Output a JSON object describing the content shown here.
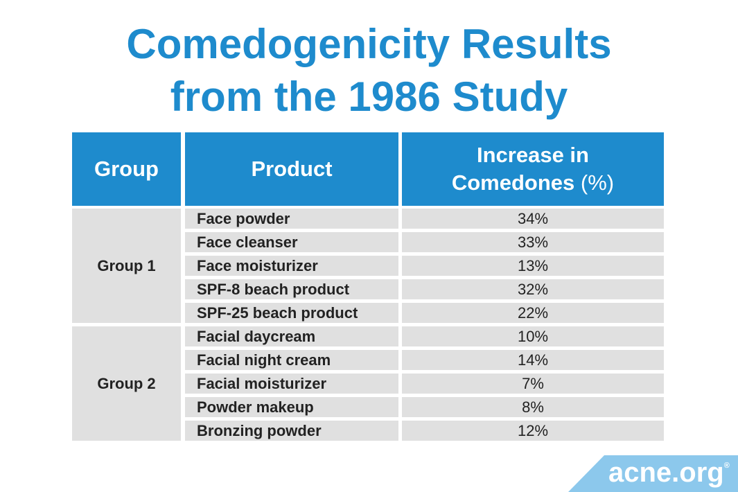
{
  "title": {
    "line1": "Comedogenicity Results",
    "line2": "from the 1986 Study"
  },
  "table": {
    "header": {
      "group": "Group",
      "product": "Product",
      "increase": "Increase in Comedones",
      "unit": "(%)"
    },
    "groups": [
      {
        "name": "Group 1",
        "rows": [
          [
            "Face powder",
            "34%"
          ],
          [
            "Face cleanser",
            "33%"
          ],
          [
            "Face moisturizer",
            "13%"
          ],
          [
            "SPF-8 beach product",
            "32%"
          ],
          [
            "SPF-25 beach product",
            "22%"
          ]
        ]
      },
      {
        "name": "Group 2",
        "rows": [
          [
            "Facial daycream",
            "10%"
          ],
          [
            "Facial night cream",
            "14%"
          ],
          [
            "Facial moisturizer",
            "7%"
          ],
          [
            "Powder makeup",
            "8%"
          ],
          [
            "Bronzing powder",
            "12%"
          ]
        ]
      }
    ]
  },
  "logo": {
    "text": "acne.org",
    "mark": "®"
  }
}
